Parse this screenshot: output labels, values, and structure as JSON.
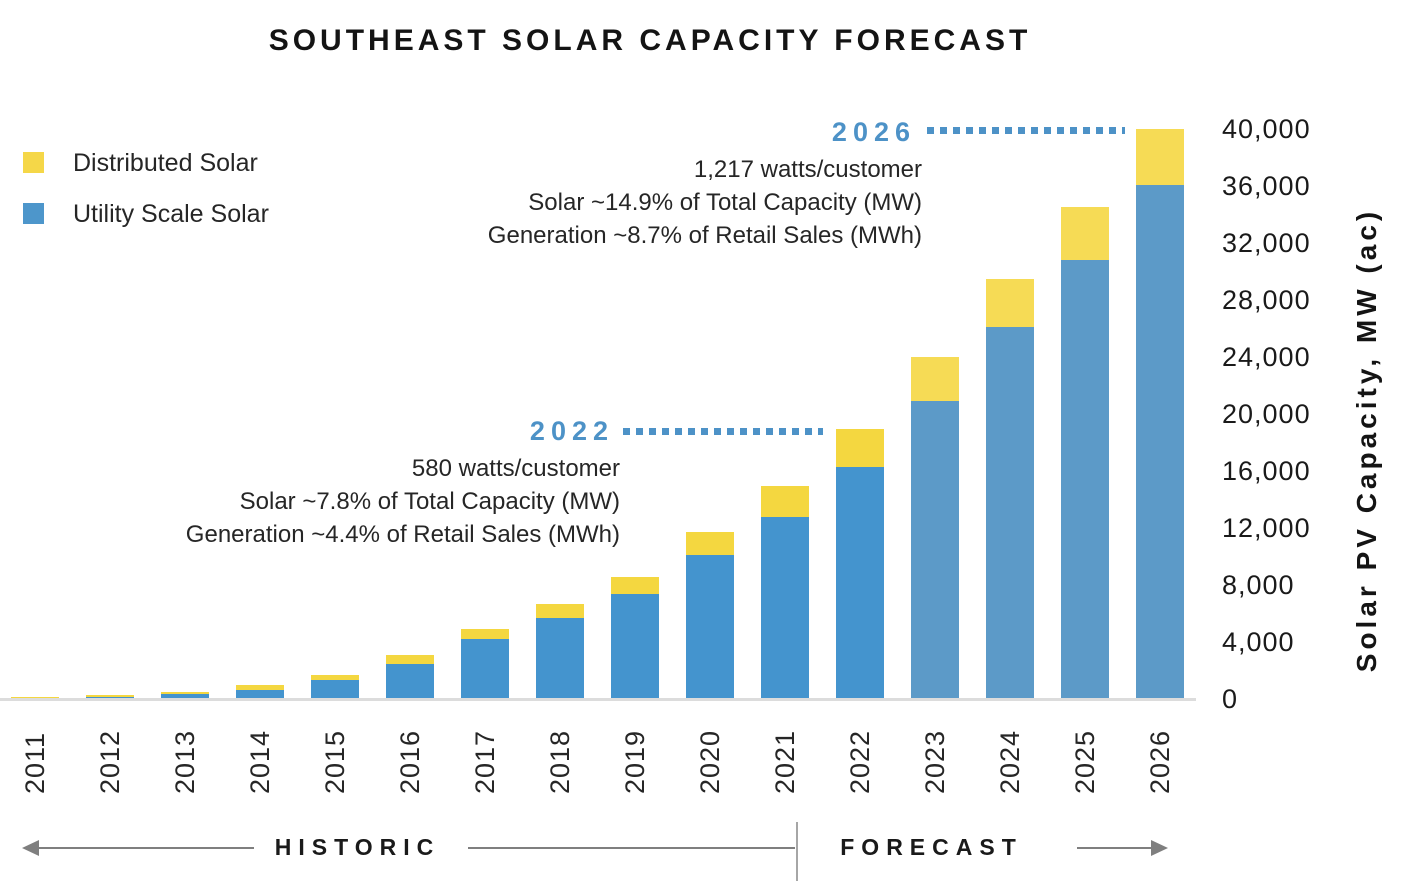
{
  "title": "SOUTHEAST SOLAR CAPACITY FORECAST",
  "legend": {
    "items": [
      {
        "label": "Distributed Solar",
        "color": "#F5D748"
      },
      {
        "label": "Utility Scale Solar",
        "color": "#4D96CB"
      }
    ]
  },
  "axis": {
    "y_title": "Solar PV Capacity, MW (ac)",
    "y_ticks": [
      {
        "label": "40,000",
        "value": 40000
      },
      {
        "label": "36,000",
        "value": 36000
      },
      {
        "label": "32,000",
        "value": 32000
      },
      {
        "label": "28,000",
        "value": 28000
      },
      {
        "label": "24,000",
        "value": 24000
      },
      {
        "label": "20,000",
        "value": 20000
      },
      {
        "label": "16,000",
        "value": 16000
      },
      {
        "label": "12,000",
        "value": 12000
      },
      {
        "label": "8,000",
        "value": 8000
      },
      {
        "label": "4,000",
        "value": 4000
      },
      {
        "label": "0",
        "value": 0
      }
    ]
  },
  "annotations": {
    "y2022": {
      "year": "2022",
      "lines": [
        "580 watts/customer",
        "Solar ~7.8% of Total Capacity (MW)",
        "Generation ~4.4% of Retail Sales (MWh)"
      ]
    },
    "y2026": {
      "year": "2026",
      "lines": [
        "1,217 watts/customer",
        "Solar ~14.9% of Total Capacity (MW)",
        "Generation ~8.7% of Retail Sales (MWh)"
      ]
    }
  },
  "footer": {
    "historic_label": "HISTORIC",
    "forecast_label": "FORECAST"
  },
  "colors": {
    "accent_blue": "#4D92C7",
    "historic_utility": "#4494CE",
    "historic_distributed": "#F4D740",
    "forecast_utility": "#5C9AC8",
    "forecast_distributed": "#F6DB55",
    "axis_line": "#DCDCDC",
    "timeline_line": "#7F7F7F"
  },
  "chart_data": {
    "type": "bar",
    "stacked": true,
    "categories": [
      "2011",
      "2012",
      "2013",
      "2014",
      "2015",
      "2016",
      "2017",
      "2018",
      "2019",
      "2020",
      "2021",
      "2022",
      "2023",
      "2024",
      "2025",
      "2026"
    ],
    "series": [
      {
        "name": "Utility Scale Solar",
        "values": [
          80,
          150,
          330,
          650,
          1350,
          2450,
          4200,
          5650,
          7400,
          10100,
          12750,
          16300,
          20900,
          26100,
          30800,
          36100
        ]
      },
      {
        "name": "Distributed Solar",
        "values": [
          70,
          120,
          140,
          350,
          380,
          600,
          700,
          1000,
          1200,
          1600,
          2150,
          2700,
          3100,
          3400,
          3700,
          3900
        ]
      }
    ],
    "units": "MW",
    "title": "SOUTHEAST SOLAR CAPACITY FORECAST",
    "xlabel": "",
    "ylabel": "Solar PV Capacity, MW (ac)",
    "ylim": [
      0,
      40000
    ],
    "y_tick_step": 4000,
    "grid": false,
    "legend_position": "top-left",
    "forecast_shade_from": "2023"
  }
}
